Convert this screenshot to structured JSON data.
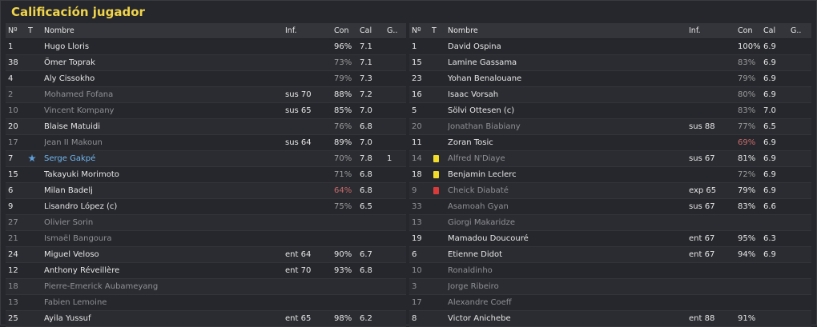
{
  "title": "Calificación jugador",
  "columns": {
    "num": "Nº",
    "t": "T",
    "name": "Nombre",
    "inf": "Inf.",
    "con": "Con",
    "cal": "Cal",
    "g": "G.."
  },
  "colors": {
    "title": "#f0d44a",
    "highlight": "#6fb6f0",
    "yellow_card": "#f2dc2a",
    "red_card": "#d93b3b",
    "low_condition": "#c76a6a"
  },
  "home": [
    {
      "num": "1",
      "name": "Hugo Lloris",
      "inf": "",
      "con": "96%",
      "cal": "7.1",
      "g": "",
      "dim": false,
      "conDim": false
    },
    {
      "num": "38",
      "name": "Ömer Toprak",
      "inf": "",
      "con": "73%",
      "cal": "7.1",
      "g": "",
      "dim": false,
      "conDim": true
    },
    {
      "num": "4",
      "name": "Aly Cissokho",
      "inf": "",
      "con": "79%",
      "cal": "7.3",
      "g": "",
      "dim": false,
      "conDim": true
    },
    {
      "num": "2",
      "name": "Mohamed Fofana",
      "inf": "sus 70",
      "con": "88%",
      "cal": "7.2",
      "g": "",
      "dim": true,
      "conDim": false
    },
    {
      "num": "10",
      "name": "Vincent Kompany",
      "inf": "sus 65",
      "con": "85%",
      "cal": "7.0",
      "g": "",
      "dim": true,
      "conDim": false
    },
    {
      "num": "20",
      "name": "Blaise Matuidi",
      "inf": "",
      "con": "76%",
      "cal": "6.8",
      "g": "",
      "dim": false,
      "conDim": true
    },
    {
      "num": "17",
      "name": "Jean II Makoun",
      "inf": "sus 64",
      "con": "89%",
      "cal": "7.0",
      "g": "",
      "dim": true,
      "conDim": false
    },
    {
      "num": "7",
      "name": "Serge Gakpé",
      "inf": "",
      "con": "70%",
      "cal": "7.8",
      "g": "1",
      "dim": false,
      "conDim": true,
      "icon": "star",
      "highlight": true
    },
    {
      "num": "15",
      "name": "Takayuki Morimoto",
      "inf": "",
      "con": "71%",
      "cal": "6.8",
      "g": "",
      "dim": false,
      "conDim": true
    },
    {
      "num": "6",
      "name": "Milan Badelj",
      "inf": "",
      "con": "64%",
      "cal": "6.8",
      "g": "",
      "dim": false,
      "conRed": true
    },
    {
      "num": "9",
      "name": "Lisandro López (c)",
      "inf": "",
      "con": "75%",
      "cal": "6.5",
      "g": "",
      "dim": false,
      "conDim": true
    },
    {
      "num": "27",
      "name": "Olivier Sorin",
      "inf": "",
      "con": "",
      "cal": "",
      "g": "",
      "dim": true
    },
    {
      "num": "21",
      "name": "Ismaël Bangoura",
      "inf": "",
      "con": "",
      "cal": "",
      "g": "",
      "dim": true
    },
    {
      "num": "24",
      "name": "Miguel Veloso",
      "inf": "ent 64",
      "con": "90%",
      "cal": "6.7",
      "g": "",
      "dim": false,
      "conDim": false
    },
    {
      "num": "12",
      "name": "Anthony Réveillère",
      "inf": "ent 70",
      "con": "93%",
      "cal": "6.8",
      "g": "",
      "dim": false,
      "conDim": false
    },
    {
      "num": "18",
      "name": "Pierre-Emerick Aubameyang",
      "inf": "",
      "con": "",
      "cal": "",
      "g": "",
      "dim": true
    },
    {
      "num": "13",
      "name": "Fabien Lemoine",
      "inf": "",
      "con": "",
      "cal": "",
      "g": "",
      "dim": true
    },
    {
      "num": "25",
      "name": "Ayila Yussuf",
      "inf": "ent 65",
      "con": "98%",
      "cal": "6.2",
      "g": "",
      "dim": false,
      "conDim": false
    }
  ],
  "away": [
    {
      "num": "1",
      "name": "David Ospina",
      "inf": "",
      "con": "100%",
      "cal": "6.9",
      "g": "",
      "dim": false,
      "conDim": false
    },
    {
      "num": "15",
      "name": "Lamine Gassama",
      "inf": "",
      "con": "83%",
      "cal": "6.9",
      "g": "",
      "dim": false,
      "conDim": true
    },
    {
      "num": "23",
      "name": "Yohan Benalouane",
      "inf": "",
      "con": "79%",
      "cal": "6.9",
      "g": "",
      "dim": false,
      "conDim": true
    },
    {
      "num": "16",
      "name": "Isaac Vorsah",
      "inf": "",
      "con": "80%",
      "cal": "6.9",
      "g": "",
      "dim": false,
      "conDim": true
    },
    {
      "num": "5",
      "name": "Sölvi Ottesen (c)",
      "inf": "",
      "con": "83%",
      "cal": "7.0",
      "g": "",
      "dim": false,
      "conDim": true
    },
    {
      "num": "20",
      "name": "Jonathan Biabiany",
      "inf": "sus 88",
      "con": "77%",
      "cal": "6.5",
      "g": "",
      "dim": true,
      "conDim": true
    },
    {
      "num": "11",
      "name": "Zoran Tosic",
      "inf": "",
      "con": "69%",
      "cal": "6.9",
      "g": "",
      "dim": false,
      "conRed": true
    },
    {
      "num": "14",
      "name": "Alfred N'Diaye",
      "inf": "sus 67",
      "con": "81%",
      "cal": "6.9",
      "g": "",
      "dim": true,
      "conDim": false,
      "icon": "yellow"
    },
    {
      "num": "18",
      "name": "Benjamin Leclerc",
      "inf": "",
      "con": "72%",
      "cal": "6.9",
      "g": "",
      "dim": false,
      "conDim": true,
      "icon": "yellow"
    },
    {
      "num": "9",
      "name": "Cheick Diabaté",
      "inf": "exp 65",
      "con": "79%",
      "cal": "6.9",
      "g": "",
      "dim": true,
      "conDim": false,
      "icon": "red"
    },
    {
      "num": "33",
      "name": "Asamoah Gyan",
      "inf": "sus 67",
      "con": "83%",
      "cal": "6.6",
      "g": "",
      "dim": true,
      "conDim": false
    },
    {
      "num": "13",
      "name": "Giorgi Makaridze",
      "inf": "",
      "con": "",
      "cal": "",
      "g": "",
      "dim": true
    },
    {
      "num": "19",
      "name": "Mamadou Doucouré",
      "inf": "ent 67",
      "con": "95%",
      "cal": "6.3",
      "g": "",
      "dim": false,
      "conDim": false
    },
    {
      "num": "6",
      "name": "Etienne Didot",
      "inf": "ent 67",
      "con": "94%",
      "cal": "6.9",
      "g": "",
      "dim": false,
      "conDim": false
    },
    {
      "num": "10",
      "name": "Ronaldinho",
      "inf": "",
      "con": "",
      "cal": "",
      "g": "",
      "dim": true
    },
    {
      "num": "3",
      "name": "Jorge Ribeiro",
      "inf": "",
      "con": "",
      "cal": "",
      "g": "",
      "dim": true
    },
    {
      "num": "17",
      "name": "Alexandre Coeff",
      "inf": "",
      "con": "",
      "cal": "",
      "g": "",
      "dim": true
    },
    {
      "num": "8",
      "name": "Victor Anichebe",
      "inf": "ent 88",
      "con": "91%",
      "cal": "",
      "g": "",
      "dim": false,
      "conDim": false
    }
  ]
}
